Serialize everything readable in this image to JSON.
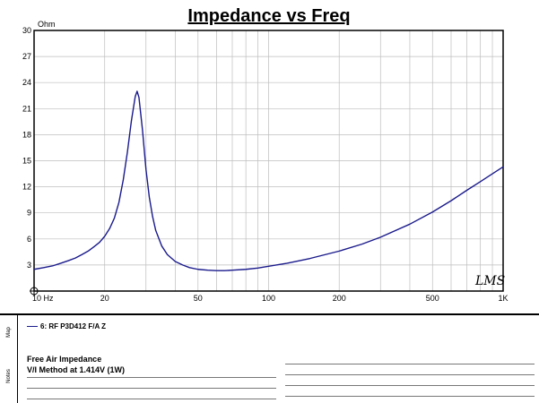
{
  "chart_data": {
    "type": "line",
    "title": "Impedance vs Freq",
    "ylabel": "Ohm",
    "xlabel": "",
    "x_scale": "log",
    "xlim": [
      10,
      1000
    ],
    "ylim": [
      0,
      30
    ],
    "y_ticks": [
      0,
      3,
      6,
      9,
      12,
      15,
      18,
      21,
      24,
      27,
      30
    ],
    "x_ticks": [
      {
        "value": 10,
        "label": "10 Hz"
      },
      {
        "value": 20,
        "label": "20"
      },
      {
        "value": 50,
        "label": "50"
      },
      {
        "value": 100,
        "label": "100"
      },
      {
        "value": 200,
        "label": "200"
      },
      {
        "value": 500,
        "label": "500"
      },
      {
        "value": 1000,
        "label": "1K"
      }
    ],
    "grid": true,
    "series": [
      {
        "name": "6: RF P3D412 F/A Z",
        "color": "#1a1a8c",
        "x": [
          10,
          11,
          12,
          13,
          14,
          15,
          16,
          17,
          18,
          19,
          20,
          21,
          22,
          23,
          24,
          25,
          26,
          27,
          27.5,
          28,
          29,
          30,
          31,
          32,
          33,
          35,
          37,
          40,
          43,
          46,
          50,
          55,
          60,
          65,
          70,
          80,
          90,
          100,
          120,
          150,
          200,
          250,
          300,
          400,
          500,
          600,
          700,
          800,
          900,
          1000
        ],
        "y": [
          2.5,
          2.7,
          2.9,
          3.2,
          3.5,
          3.8,
          4.2,
          4.6,
          5.1,
          5.6,
          6.3,
          7.2,
          8.4,
          10.2,
          12.8,
          16.0,
          19.6,
          22.4,
          23.0,
          22.3,
          18.5,
          14.0,
          10.8,
          8.6,
          7.0,
          5.2,
          4.2,
          3.4,
          3.0,
          2.7,
          2.5,
          2.4,
          2.35,
          2.35,
          2.4,
          2.5,
          2.65,
          2.85,
          3.2,
          3.75,
          4.6,
          5.4,
          6.2,
          7.7,
          9.1,
          10.4,
          11.6,
          12.6,
          13.5,
          14.3
        ]
      }
    ]
  },
  "watermark": "LMS",
  "map_panel": {
    "label": "Map",
    "legend": "6: RF P3D412 F/A Z"
  },
  "notes_panel": {
    "label": "Notes",
    "lines": [
      "Free Air Impedance",
      "V/I Method at 1.414V (1W)"
    ]
  }
}
